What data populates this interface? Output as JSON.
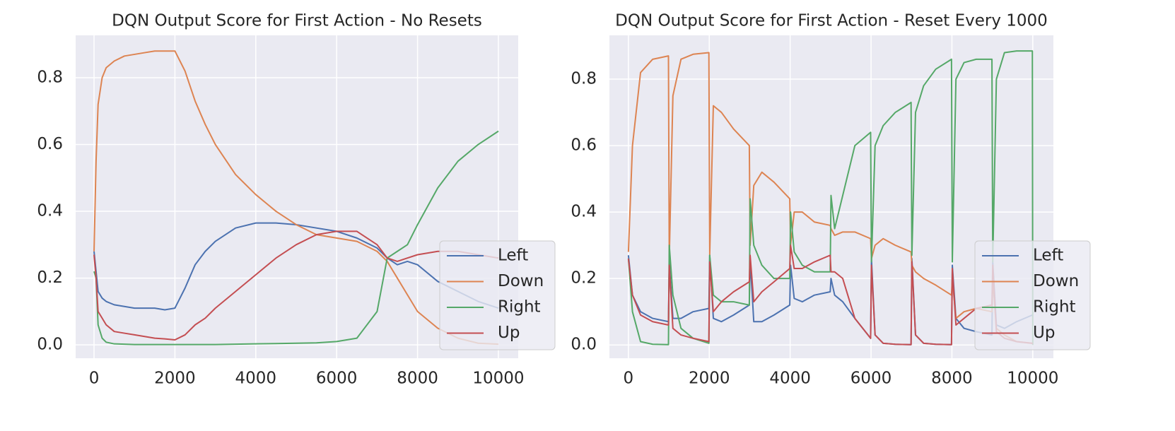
{
  "chart_data": [
    {
      "type": "line",
      "title": "DQN Output Score for First Action - No Resets",
      "x": [
        0,
        50,
        100,
        200,
        300,
        500,
        750,
        1000,
        1250,
        1500,
        1750,
        2000,
        2250,
        2500,
        2750,
        3000,
        3500,
        4000,
        4500,
        5000,
        5500,
        6000,
        6500,
        7000,
        7250,
        7500,
        7750,
        8000,
        8500,
        9000,
        9500,
        10000
      ],
      "series": [
        {
          "name": "Left",
          "color": "#4c72b0",
          "values": [
            0.28,
            0.22,
            0.16,
            0.14,
            0.13,
            0.12,
            0.115,
            0.11,
            0.11,
            0.11,
            0.105,
            0.11,
            0.17,
            0.24,
            0.28,
            0.31,
            0.35,
            0.365,
            0.365,
            0.36,
            0.35,
            0.34,
            0.32,
            0.29,
            0.26,
            0.24,
            0.25,
            0.24,
            0.19,
            0.16,
            0.13,
            0.11
          ]
        },
        {
          "name": "Down",
          "color": "#dd8452",
          "values": [
            0.28,
            0.55,
            0.72,
            0.8,
            0.83,
            0.85,
            0.865,
            0.87,
            0.875,
            0.88,
            0.88,
            0.88,
            0.82,
            0.73,
            0.66,
            0.6,
            0.51,
            0.45,
            0.4,
            0.36,
            0.33,
            0.32,
            0.31,
            0.28,
            0.25,
            0.2,
            0.15,
            0.1,
            0.05,
            0.02,
            0.005,
            0.002
          ]
        },
        {
          "name": "Right",
          "color": "#55a868",
          "values": [
            0.22,
            0.2,
            0.06,
            0.02,
            0.008,
            0.003,
            0.002,
            0.001,
            0.001,
            0.001,
            0.001,
            0.001,
            0.001,
            0.001,
            0.001,
            0.001,
            0.002,
            0.003,
            0.004,
            0.005,
            0.006,
            0.01,
            0.02,
            0.1,
            0.26,
            0.28,
            0.3,
            0.36,
            0.47,
            0.55,
            0.6,
            0.64
          ]
        },
        {
          "name": "Up",
          "color": "#c44e52",
          "values": [
            0.27,
            0.2,
            0.1,
            0.08,
            0.06,
            0.04,
            0.035,
            0.03,
            0.025,
            0.02,
            0.018,
            0.015,
            0.03,
            0.06,
            0.08,
            0.11,
            0.16,
            0.21,
            0.26,
            0.3,
            0.33,
            0.34,
            0.34,
            0.3,
            0.26,
            0.25,
            0.26,
            0.27,
            0.28,
            0.28,
            0.27,
            0.26
          ]
        }
      ],
      "xlim": [
        -455,
        10490
      ],
      "ylim": [
        -0.04,
        0.927
      ],
      "xticks": [
        0,
        2000,
        4000,
        6000,
        8000,
        10000
      ],
      "yticks": [
        {
          "value": 0,
          "label": "0.0"
        },
        0.2,
        0.4,
        0.6,
        0.8
      ],
      "grid": true,
      "legend": "lower right"
    },
    {
      "type": "line",
      "title": "DQN Output Score for First Action - Reset Every 1000",
      "x": [
        0,
        100,
        300,
        600,
        990,
        1010,
        1100,
        1300,
        1600,
        1990,
        2010,
        2100,
        2300,
        2600,
        2990,
        3010,
        3100,
        3300,
        3600,
        3990,
        4010,
        4100,
        4300,
        4600,
        4990,
        5010,
        5100,
        5300,
        5600,
        5990,
        6010,
        6100,
        6300,
        6600,
        6990,
        7010,
        7100,
        7300,
        7600,
        7990,
        8010,
        8100,
        8300,
        8600,
        8990,
        9010,
        9100,
        9300,
        9600,
        9990,
        10000
      ],
      "series": [
        {
          "name": "Left",
          "color": "#4c72b0",
          "values": [
            0.27,
            0.15,
            0.1,
            0.08,
            0.07,
            0.25,
            0.08,
            0.08,
            0.1,
            0.11,
            0.27,
            0.08,
            0.07,
            0.09,
            0.12,
            0.26,
            0.07,
            0.07,
            0.09,
            0.12,
            0.24,
            0.14,
            0.13,
            0.15,
            0.16,
            0.2,
            0.15,
            0.13,
            0.08,
            0.02,
            0.26,
            0.03,
            0.005,
            0.002,
            0.001,
            0.26,
            0.03,
            0.005,
            0.002,
            0.001,
            0.24,
            0.08,
            0.05,
            0.04,
            0.03,
            0.25,
            0.06,
            0.05,
            0.07,
            0.09,
            0.09
          ]
        },
        {
          "name": "Down",
          "color": "#dd8452",
          "values": [
            0.28,
            0.6,
            0.82,
            0.86,
            0.87,
            0.26,
            0.75,
            0.86,
            0.875,
            0.88,
            0.27,
            0.72,
            0.7,
            0.65,
            0.6,
            0.3,
            0.48,
            0.52,
            0.49,
            0.44,
            0.3,
            0.4,
            0.4,
            0.37,
            0.36,
            0.35,
            0.33,
            0.34,
            0.34,
            0.32,
            0.26,
            0.3,
            0.32,
            0.3,
            0.28,
            0.24,
            0.22,
            0.2,
            0.18,
            0.15,
            0.2,
            0.08,
            0.1,
            0.11,
            0.1,
            0.2,
            0.05,
            0.03,
            0.01,
            0.005,
            0.005
          ]
        },
        {
          "name": "Right",
          "color": "#55a868",
          "values": [
            0.26,
            0.1,
            0.01,
            0.002,
            0.001,
            0.3,
            0.15,
            0.05,
            0.02,
            0.005,
            0.27,
            0.15,
            0.13,
            0.13,
            0.12,
            0.44,
            0.3,
            0.24,
            0.2,
            0.2,
            0.4,
            0.28,
            0.24,
            0.22,
            0.22,
            0.45,
            0.35,
            0.45,
            0.6,
            0.64,
            0.25,
            0.6,
            0.66,
            0.7,
            0.73,
            0.27,
            0.7,
            0.78,
            0.83,
            0.86,
            0.25,
            0.8,
            0.85,
            0.86,
            0.86,
            0.25,
            0.8,
            0.88,
            0.885,
            0.885,
            0.0
          ]
        },
        {
          "name": "Up",
          "color": "#c44e52",
          "values": [
            0.26,
            0.15,
            0.09,
            0.07,
            0.06,
            0.24,
            0.05,
            0.03,
            0.02,
            0.01,
            0.25,
            0.1,
            0.13,
            0.16,
            0.19,
            0.27,
            0.13,
            0.16,
            0.19,
            0.23,
            0.3,
            0.23,
            0.23,
            0.25,
            0.27,
            0.22,
            0.22,
            0.2,
            0.08,
            0.02,
            0.24,
            0.03,
            0.005,
            0.002,
            0.001,
            0.25,
            0.03,
            0.005,
            0.002,
            0.001,
            0.23,
            0.06,
            0.08,
            0.11,
            0.12,
            0.24,
            0.04,
            0.02,
            0.01,
            0.005,
            0.005
          ]
        }
      ],
      "xlim": [
        -470,
        10510
      ],
      "ylim": [
        -0.04,
        0.932
      ],
      "xticks": [
        0,
        2000,
        4000,
        6000,
        8000,
        10000
      ],
      "yticks": [
        {
          "value": 0,
          "label": "0.0"
        },
        0.2,
        0.4,
        0.6,
        0.8
      ],
      "grid": true,
      "legend": "lower right"
    }
  ]
}
